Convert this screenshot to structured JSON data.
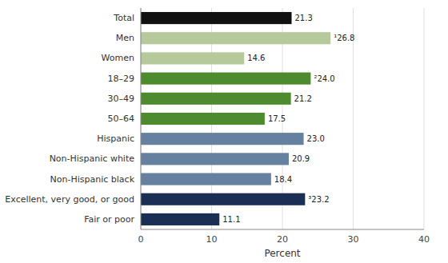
{
  "chart_data": {
    "type": "bar",
    "orientation": "horizontal",
    "categories": [
      "Total",
      "Men",
      "Women",
      "18–29",
      "30–49",
      "50–64",
      "Hispanic",
      "Non-Hispanic white",
      "Non-Hispanic black",
      "Excellent, very good, or good",
      "Fair or poor"
    ],
    "values": [
      21.3,
      26.8,
      14.6,
      24.0,
      21.2,
      17.5,
      23.0,
      20.9,
      18.4,
      23.2,
      11.1
    ],
    "value_labels": [
      "21.3",
      "¹26.8",
      "14.6",
      "²24.0",
      "21.2",
      "17.5",
      "23.0",
      "20.9",
      "18.4",
      "³23.2",
      "11.1"
    ],
    "colors": [
      "#111111",
      "#b5c99a",
      "#b5c99a",
      "#4e8b2e",
      "#4e8b2e",
      "#4e8b2e",
      "#6680a0",
      "#6680a0",
      "#6680a0",
      "#1b2f55",
      "#1b2f55"
    ],
    "xlabel": "Percent",
    "xlim": [
      0,
      40
    ],
    "xticks": [
      0,
      10,
      20,
      30,
      40
    ],
    "grid": true,
    "data_labels": true
  }
}
